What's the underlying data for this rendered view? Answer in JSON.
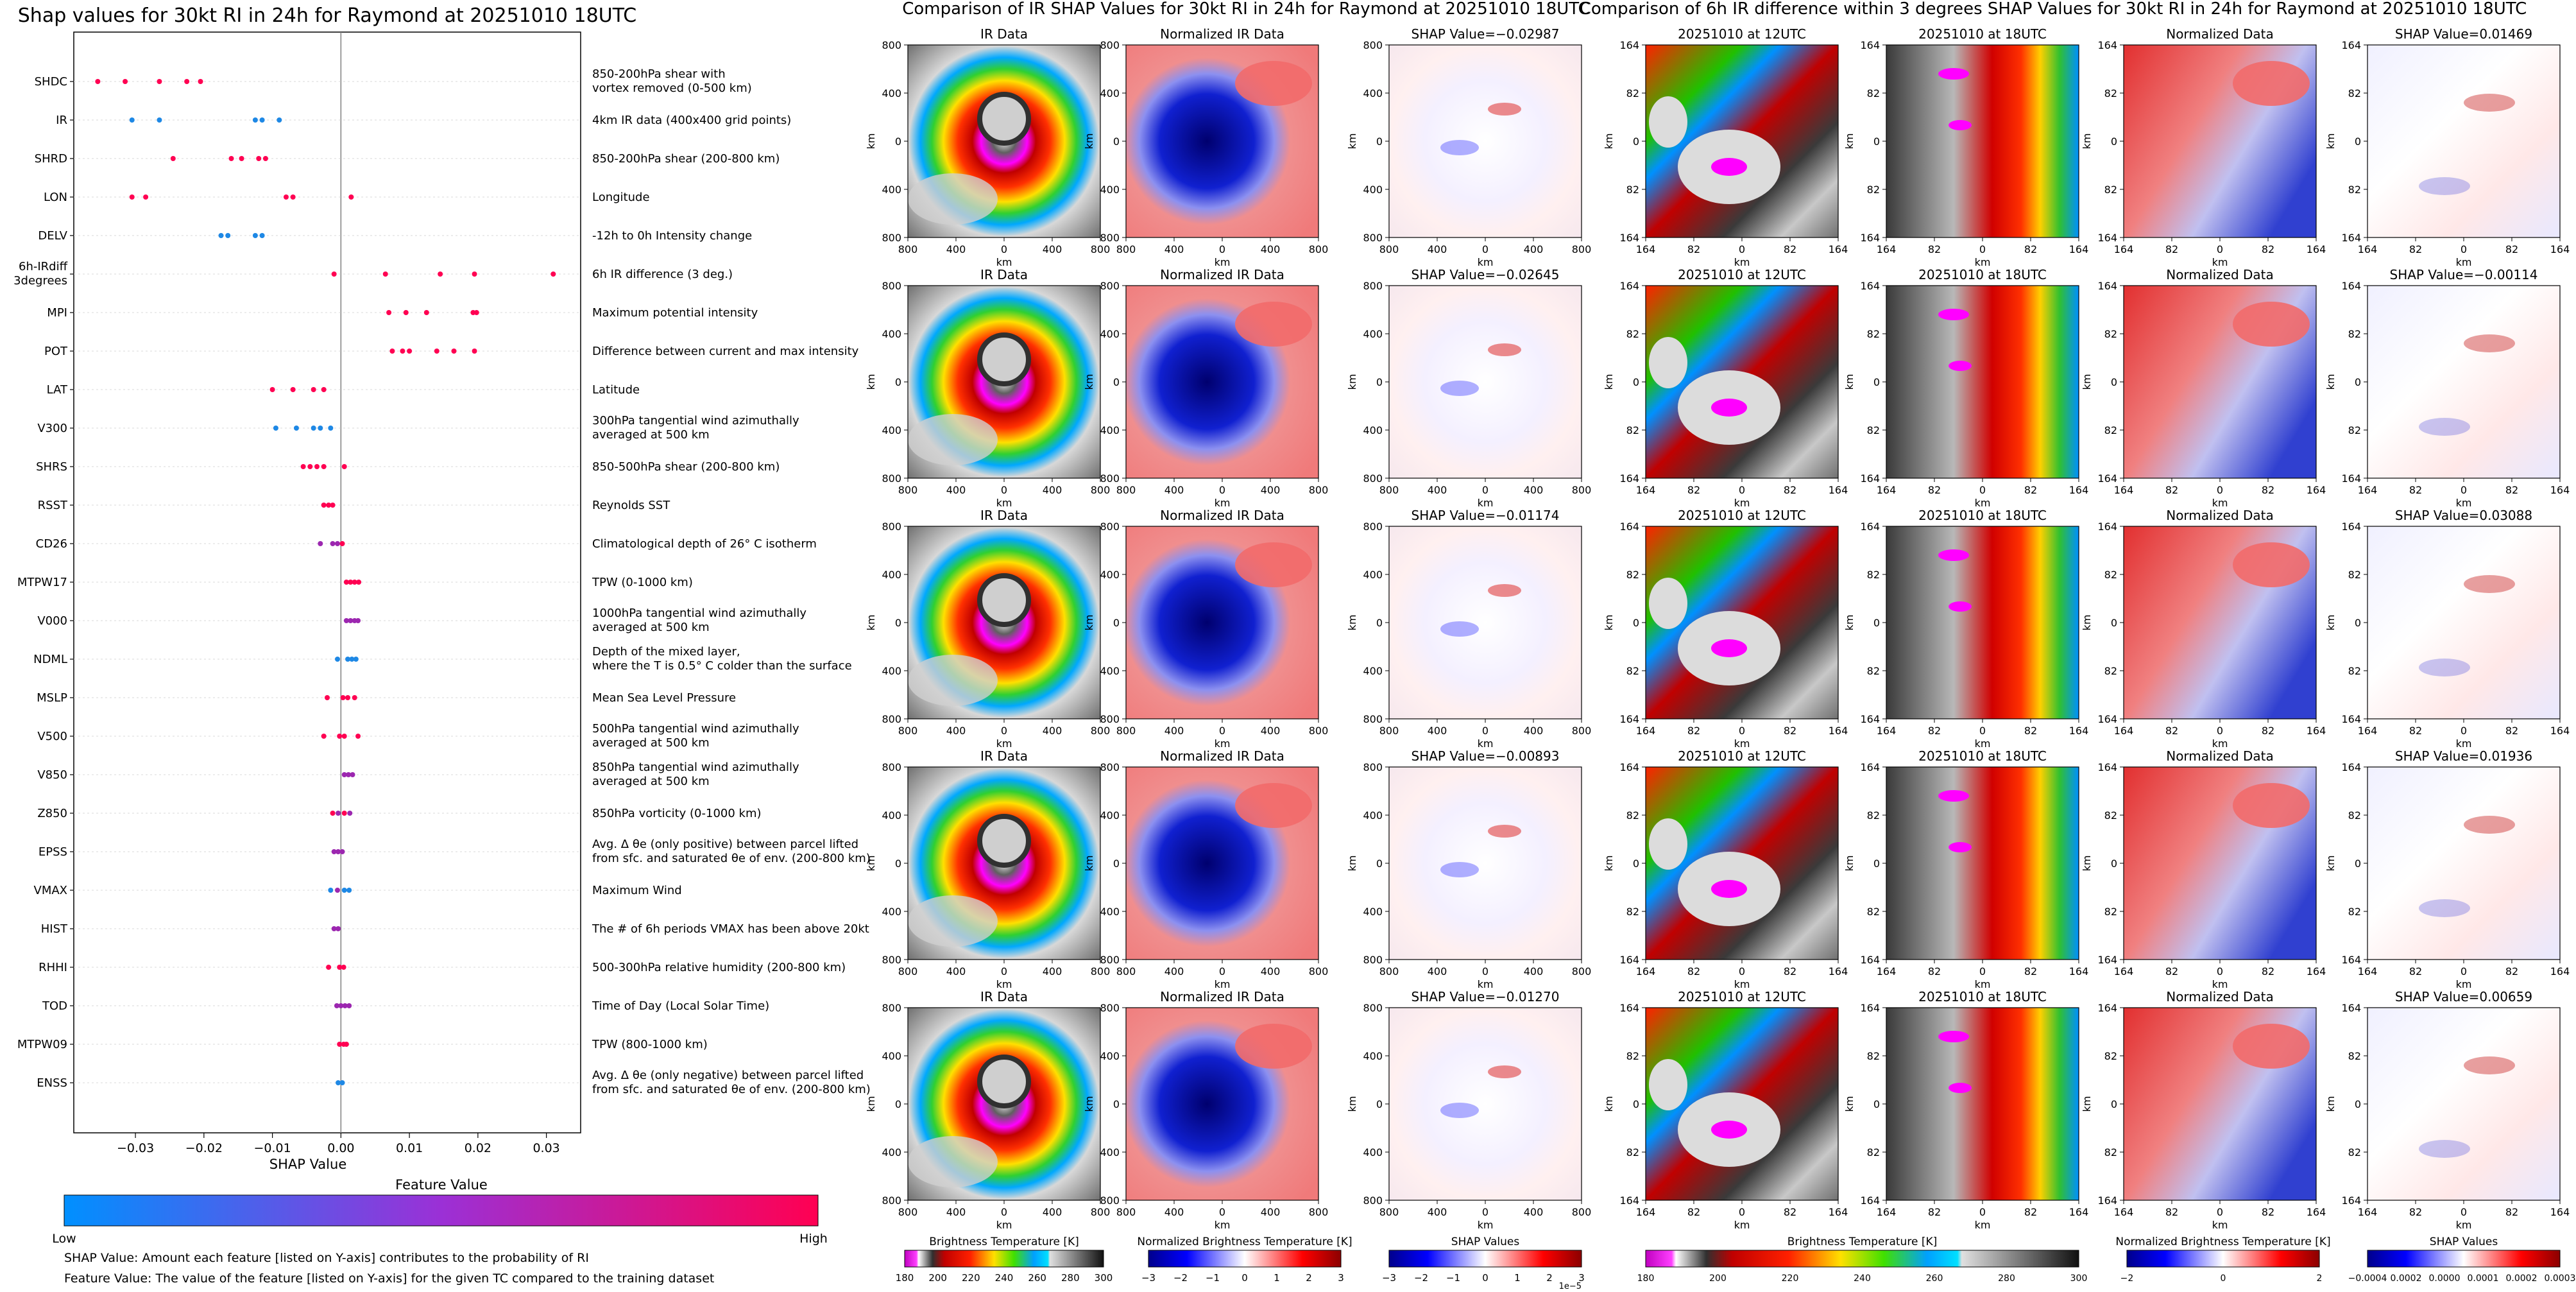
{
  "shap_panel": {
    "title": "Shap values for 30kt RI in 24h for Raymond at 20251010 18UTC",
    "xlabel": "SHAP Value",
    "x_ticks": [
      "−0.03",
      "−0.02",
      "−0.01",
      "0.00",
      "0.01",
      "0.02",
      "0.03"
    ],
    "colorbar_title": "Feature Value",
    "colorbar_low": "Low",
    "colorbar_high": "High",
    "note_shap": "SHAP Value: Amount each feature [listed on Y-axis] contributes to the probability of RI",
    "note_feature": "Feature Value: The value of the feature [listed on Y-axis] for the given TC compared to the training dataset"
  },
  "chart_data": [
    {
      "type": "scatter",
      "title": "Shap values for 30kt RI in 24h for Raymond at 20251010 18UTC",
      "xlabel": "SHAP Value",
      "xlim": [
        -0.039,
        0.035
      ],
      "colors": {
        "low": "#1e88e5",
        "mid": "#9c27b0",
        "high": "#ff0052"
      },
      "features": [
        {
          "name": "SHDC",
          "desc": [
            "850-200hPa shear with",
            "vortex removed (0-500 km)"
          ],
          "points": [
            {
              "x": -0.0355,
              "c": "high"
            },
            {
              "x": -0.0315,
              "c": "high"
            },
            {
              "x": -0.0265,
              "c": "high"
            },
            {
              "x": -0.0225,
              "c": "high"
            },
            {
              "x": -0.0205,
              "c": "high"
            }
          ]
        },
        {
          "name": "IR",
          "desc": [
            "4km IR data (400x400 grid points)"
          ],
          "points": [
            {
              "x": -0.0305,
              "c": "low"
            },
            {
              "x": -0.0265,
              "c": "low"
            },
            {
              "x": -0.0125,
              "c": "low"
            },
            {
              "x": -0.0115,
              "c": "low"
            },
            {
              "x": -0.009,
              "c": "low"
            }
          ]
        },
        {
          "name": "SHRD",
          "desc": [
            "850-200hPa shear (200-800 km)"
          ],
          "points": [
            {
              "x": -0.0245,
              "c": "high"
            },
            {
              "x": -0.016,
              "c": "high"
            },
            {
              "x": -0.0145,
              "c": "high"
            },
            {
              "x": -0.012,
              "c": "high"
            },
            {
              "x": -0.011,
              "c": "high"
            }
          ]
        },
        {
          "name": "LON",
          "desc": [
            "Longitude"
          ],
          "points": [
            {
              "x": -0.0305,
              "c": "high"
            },
            {
              "x": -0.0285,
              "c": "high"
            },
            {
              "x": -0.008,
              "c": "high"
            },
            {
              "x": -0.007,
              "c": "high"
            },
            {
              "x": 0.0015,
              "c": "high"
            }
          ]
        },
        {
          "name": "DELV",
          "desc": [
            "-12h to 0h Intensity change"
          ],
          "points": [
            {
              "x": -0.0175,
              "c": "low"
            },
            {
              "x": -0.0165,
              "c": "low"
            },
            {
              "x": -0.0125,
              "c": "low"
            },
            {
              "x": -0.0115,
              "c": "low"
            }
          ]
        },
        {
          "name": "6h-IRdiff 3degrees",
          "desc": [
            "6h IR difference (3 deg.)"
          ],
          "points": [
            {
              "x": -0.001,
              "c": "high"
            },
            {
              "x": 0.0065,
              "c": "high"
            },
            {
              "x": 0.0145,
              "c": "high"
            },
            {
              "x": 0.0195,
              "c": "high"
            },
            {
              "x": 0.031,
              "c": "high"
            }
          ]
        },
        {
          "name": "MPI",
          "desc": [
            "Maximum potential intensity"
          ],
          "points": [
            {
              "x": 0.007,
              "c": "high"
            },
            {
              "x": 0.0095,
              "c": "high"
            },
            {
              "x": 0.0125,
              "c": "high"
            },
            {
              "x": 0.0193,
              "c": "high"
            },
            {
              "x": 0.0198,
              "c": "high"
            }
          ]
        },
        {
          "name": "POT",
          "desc": [
            "Difference between current and max intensity"
          ],
          "points": [
            {
              "x": 0.0075,
              "c": "high"
            },
            {
              "x": 0.009,
              "c": "high"
            },
            {
              "x": 0.01,
              "c": "high"
            },
            {
              "x": 0.014,
              "c": "high"
            },
            {
              "x": 0.0165,
              "c": "high"
            },
            {
              "x": 0.0195,
              "c": "high"
            }
          ]
        },
        {
          "name": "LAT",
          "desc": [
            "Latitude"
          ],
          "points": [
            {
              "x": -0.01,
              "c": "high"
            },
            {
              "x": -0.007,
              "c": "high"
            },
            {
              "x": -0.004,
              "c": "high"
            },
            {
              "x": -0.0025,
              "c": "high"
            }
          ]
        },
        {
          "name": "V300",
          "desc": [
            "300hPa tangential wind azimuthally",
            "averaged at 500 km"
          ],
          "points": [
            {
              "x": -0.0095,
              "c": "low"
            },
            {
              "x": -0.0065,
              "c": "low"
            },
            {
              "x": -0.004,
              "c": "low"
            },
            {
              "x": -0.003,
              "c": "low"
            },
            {
              "x": -0.0015,
              "c": "low"
            }
          ]
        },
        {
          "name": "SHRS",
          "desc": [
            "850-500hPa shear (200-800 km)"
          ],
          "points": [
            {
              "x": -0.0055,
              "c": "high"
            },
            {
              "x": -0.0045,
              "c": "high"
            },
            {
              "x": -0.0035,
              "c": "high"
            },
            {
              "x": -0.0025,
              "c": "high"
            },
            {
              "x": 0.0005,
              "c": "high"
            }
          ]
        },
        {
          "name": "RSST",
          "desc": [
            "Reynolds SST"
          ],
          "points": [
            {
              "x": -0.0025,
              "c": "high"
            },
            {
              "x": -0.0018,
              "c": "high"
            },
            {
              "x": -0.0012,
              "c": "high"
            }
          ]
        },
        {
          "name": "CD26",
          "desc": [
            "Climatological depth of 26° C isotherm"
          ],
          "points": [
            {
              "x": -0.003,
              "c": "mid"
            },
            {
              "x": -0.0012,
              "c": "mid"
            },
            {
              "x": -0.0005,
              "c": "mid"
            },
            {
              "x": 0.0002,
              "c": "high"
            }
          ]
        },
        {
          "name": "MTPW17",
          "desc": [
            "TPW (0-1000 km)"
          ],
          "points": [
            {
              "x": 0.0008,
              "c": "high"
            },
            {
              "x": 0.0014,
              "c": "high"
            },
            {
              "x": 0.002,
              "c": "high"
            },
            {
              "x": 0.0026,
              "c": "high"
            }
          ]
        },
        {
          "name": "V000",
          "desc": [
            "1000hPa tangential wind azimuthally",
            "averaged at 500 km"
          ],
          "points": [
            {
              "x": 0.0008,
              "c": "mid"
            },
            {
              "x": 0.0014,
              "c": "mid"
            },
            {
              "x": 0.002,
              "c": "mid"
            },
            {
              "x": 0.0025,
              "c": "mid"
            }
          ]
        },
        {
          "name": "NDML",
          "desc": [
            "Depth of the mixed layer,",
            "where the T is 0.5° C colder than the surface"
          ],
          "points": [
            {
              "x": -0.0005,
              "c": "low"
            },
            {
              "x": 0.001,
              "c": "low"
            },
            {
              "x": 0.0016,
              "c": "low"
            },
            {
              "x": 0.0022,
              "c": "low"
            }
          ]
        },
        {
          "name": "MSLP",
          "desc": [
            "Mean Sea Level Pressure"
          ],
          "points": [
            {
              "x": -0.002,
              "c": "high"
            },
            {
              "x": 0.0003,
              "c": "high"
            },
            {
              "x": 0.001,
              "c": "high"
            },
            {
              "x": 0.002,
              "c": "high"
            }
          ]
        },
        {
          "name": "V500",
          "desc": [
            "500hPa tangential wind azimuthally",
            "averaged at 500 km"
          ],
          "points": [
            {
              "x": -0.0025,
              "c": "high"
            },
            {
              "x": -0.0002,
              "c": "high"
            },
            {
              "x": 0.0005,
              "c": "high"
            },
            {
              "x": 0.0025,
              "c": "high"
            }
          ]
        },
        {
          "name": "V850",
          "desc": [
            "850hPa tangential wind azimuthally",
            "averaged at 500 km"
          ],
          "points": [
            {
              "x": 0.0005,
              "c": "mid"
            },
            {
              "x": 0.0011,
              "c": "mid"
            },
            {
              "x": 0.0017,
              "c": "mid"
            }
          ]
        },
        {
          "name": "Z850",
          "desc": [
            "850hPa vorticity (0-1000 km)"
          ],
          "points": [
            {
              "x": -0.0012,
              "c": "high"
            },
            {
              "x": -0.0004,
              "c": "mid"
            },
            {
              "x": 0.0005,
              "c": "high"
            },
            {
              "x": 0.0013,
              "c": "mid"
            }
          ]
        },
        {
          "name": "EPSS",
          "desc": [
            "Avg. Δ θe (only positive) between parcel lifted",
            "from sfc. and saturated θe of env. (200-800 km)"
          ],
          "points": [
            {
              "x": -0.001,
              "c": "mid"
            },
            {
              "x": -0.0004,
              "c": "mid"
            },
            {
              "x": 0.0002,
              "c": "mid"
            }
          ]
        },
        {
          "name": "VMAX",
          "desc": [
            "Maximum Wind"
          ],
          "points": [
            {
              "x": -0.0015,
              "c": "low"
            },
            {
              "x": -0.0005,
              "c": "mid"
            },
            {
              "x": 0.0005,
              "c": "low"
            },
            {
              "x": 0.0012,
              "c": "low"
            }
          ]
        },
        {
          "name": "HIST",
          "desc": [
            "The # of 6h periods VMAX has been above 20kt"
          ],
          "points": [
            {
              "x": -0.001,
              "c": "mid"
            },
            {
              "x": -0.0004,
              "c": "mid"
            }
          ]
        },
        {
          "name": "RHHI",
          "desc": [
            "500-300hPa relative humidity (200-800 km)"
          ],
          "points": [
            {
              "x": -0.0018,
              "c": "high"
            },
            {
              "x": -0.0002,
              "c": "high"
            },
            {
              "x": 0.0004,
              "c": "high"
            }
          ]
        },
        {
          "name": "TOD",
          "desc": [
            "Time of Day (Local Solar Time)"
          ],
          "points": [
            {
              "x": -0.0006,
              "c": "mid"
            },
            {
              "x": 0.0,
              "c": "mid"
            },
            {
              "x": 0.0006,
              "c": "mid"
            },
            {
              "x": 0.0012,
              "c": "mid"
            }
          ]
        },
        {
          "name": "MTPW09",
          "desc": [
            "TPW (800-1000 km)"
          ],
          "points": [
            {
              "x": -0.0002,
              "c": "high"
            },
            {
              "x": 0.0004,
              "c": "high"
            },
            {
              "x": 0.0008,
              "c": "high"
            }
          ]
        },
        {
          "name": "ENSS",
          "desc": [
            "Avg. Δ θe (only negative) between parcel lifted",
            "from sfc. and saturated θe of env. (200-800 km)"
          ],
          "points": [
            {
              "x": -0.0004,
              "c": "low"
            },
            {
              "x": 0.0002,
              "c": "low"
            }
          ]
        }
      ]
    },
    {
      "type": "heatmap",
      "title": "Comparison of IR SHAP Values for 30kt RI in 24h for Raymond at 20251010 18UTC",
      "column_titles": [
        "IR Data",
        "Normalized IR Data",
        "SHAP Value"
      ],
      "xlabel": "km",
      "ylabel": "km",
      "ticks": [
        "800",
        "400",
        "0",
        "400",
        "800"
      ],
      "shap_values": [
        "−0.02987",
        "−0.02645",
        "−0.01174",
        "−0.00893",
        "−0.01270"
      ],
      "colorbars": [
        {
          "label": "Brightness Temperature [K]",
          "ticks": [
            "180",
            "200",
            "220",
            "240",
            "260",
            "280",
            "300"
          ]
        },
        {
          "label": "Normalized Brightness Temperature [K]",
          "ticks": [
            "−3",
            "−2",
            "−1",
            "0",
            "1",
            "2",
            "3"
          ]
        },
        {
          "label": "SHAP Values",
          "ticks": [
            "−3",
            "−2",
            "−1",
            "0",
            "1",
            "2",
            "3"
          ],
          "scale": "1e−5"
        }
      ]
    },
    {
      "type": "heatmap",
      "title": "Comparison of 6h IR difference within 3 degrees SHAP Values for 30kt RI in 24h for Raymond at 20251010 18UTC",
      "column_titles": [
        "20251010 at 12UTC",
        "20251010 at 18UTC",
        "Normalized Data",
        "SHAP Value"
      ],
      "xlabel": "km",
      "ylabel": "km",
      "ticks": [
        "164",
        "82",
        "0",
        "82",
        "164"
      ],
      "shap_values": [
        "0.01469",
        "−0.00114",
        "0.03088",
        "0.01936",
        "0.00659"
      ],
      "colorbars": [
        {
          "label": "Brightness Temperature [K]",
          "ticks": [
            "180",
            "200",
            "220",
            "240",
            "260",
            "280",
            "300"
          ]
        },
        {
          "label": "Normalized Brightness Temperature [K]",
          "ticks": [
            "−2",
            "0",
            "2"
          ]
        },
        {
          "label": "SHAP Values",
          "ticks": [
            "−0.0004",
            "0.0002",
            "0.0000",
            "0.0001",
            "0.0002",
            "0.0003"
          ]
        }
      ]
    }
  ]
}
